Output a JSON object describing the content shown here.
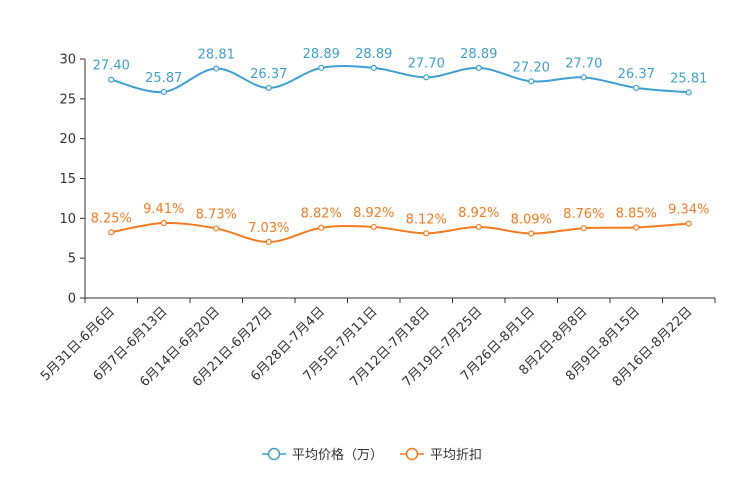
{
  "chart_data": {
    "type": "line",
    "title": "",
    "xlabel": "",
    "ylabel": "",
    "ylim": [
      0,
      30
    ],
    "yticks": [
      0,
      5,
      10,
      15,
      20,
      25,
      30
    ],
    "grid": false,
    "legend_position": "bottom-center",
    "categories": [
      "5月31日-6月6日",
      "6月7日-6月13日",
      "6月14日-6月20日",
      "6月21日-6月27日",
      "6月28日-7月4日",
      "7月5日-7月11日",
      "7月12日-7月18日",
      "7月19日-7月25日",
      "7月26日-8月1日",
      "8月2日-8月8日",
      "8月9日-8月15日",
      "8月16日-8月22日"
    ],
    "series": [
      {
        "name": "平均价格（万）",
        "color": "#3e9fd0",
        "values": [
          27.4,
          25.87,
          28.81,
          26.37,
          28.89,
          28.89,
          27.7,
          28.89,
          27.2,
          27.7,
          26.37,
          25.81
        ],
        "labels": [
          "27.40",
          "25.87",
          "28.81",
          "26.37",
          "28.89",
          "28.89",
          "27.70",
          "28.89",
          "27.20",
          "27.70",
          "26.37",
          "25.81"
        ]
      },
      {
        "name": "平均折扣",
        "color": "#f47b20",
        "values": [
          8.25,
          9.41,
          8.73,
          7.03,
          8.82,
          8.92,
          8.12,
          8.92,
          8.09,
          8.76,
          8.85,
          9.34
        ],
        "labels": [
          "8.25%",
          "9.41%",
          "8.73%",
          "7.03%",
          "8.82%",
          "8.92%",
          "8.12%",
          "8.92%",
          "8.09%",
          "8.76%",
          "8.85%",
          "9.34%"
        ]
      }
    ]
  }
}
